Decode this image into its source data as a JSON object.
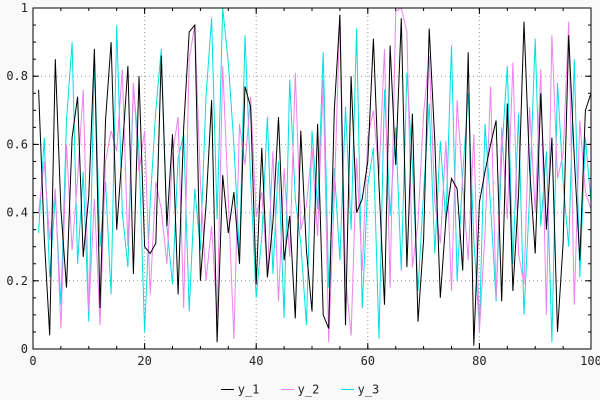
{
  "chart_data": {
    "type": "line",
    "title": "",
    "xlabel": "",
    "ylabel": "",
    "xlim": [
      0,
      100
    ],
    "ylim": [
      0,
      1
    ],
    "xticks": [
      0,
      20,
      40,
      60,
      80,
      100
    ],
    "yticks": [
      0,
      0.2,
      0.4,
      0.6,
      0.8,
      1
    ],
    "xtick_labels": [
      "0",
      "20",
      "40",
      "60",
      "80",
      "100"
    ],
    "ytick_labels": [
      "0",
      "0.2",
      "0.4",
      "0.6",
      "0.8",
      "1"
    ],
    "grid": true,
    "legend_position": "bottom-center",
    "x_start": 1,
    "series": [
      {
        "name": "y_1",
        "color": "#000000",
        "values": [
          0.76,
          0.33,
          0.04,
          0.85,
          0.41,
          0.18,
          0.62,
          0.74,
          0.27,
          0.45,
          0.88,
          0.12,
          0.67,
          0.9,
          0.35,
          0.58,
          0.83,
          0.22,
          0.8,
          0.3,
          0.28,
          0.31,
          0.86,
          0.36,
          0.63,
          0.16,
          0.65,
          0.93,
          0.95,
          0.2,
          0.42,
          0.73,
          0.02,
          0.51,
          0.34,
          0.46,
          0.25,
          0.77,
          0.71,
          0.19,
          0.59,
          0.21,
          0.37,
          0.68,
          0.26,
          0.39,
          0.09,
          0.64,
          0.29,
          0.11,
          0.66,
          0.1,
          0.06,
          0.7,
          0.98,
          0.07,
          0.8,
          0.4,
          0.44,
          0.55,
          0.91,
          0.48,
          0.13,
          0.89,
          0.54,
          0.97,
          0.24,
          0.69,
          0.08,
          0.32,
          0.94,
          0.61,
          0.15,
          0.38,
          0.5,
          0.47,
          0.23,
          0.87,
          0.01,
          0.43,
          0.52,
          0.6,
          0.67,
          0.14,
          0.72,
          0.17,
          0.45,
          0.96,
          0.53,
          0.28,
          0.75,
          0.35,
          0.62,
          0.05,
          0.31,
          0.92,
          0.56,
          0.26,
          0.7,
          0.75
        ]
      },
      {
        "name": "y_2",
        "color": "#ee82ee",
        "values": [
          0.4,
          0.55,
          0.32,
          0.47,
          0.06,
          0.6,
          0.29,
          0.5,
          0.76,
          0.11,
          0.44,
          0.07,
          0.55,
          0.64,
          0.58,
          0.82,
          0.3,
          0.78,
          0.52,
          0.64,
          0.16,
          0.49,
          0.41,
          0.25,
          0.57,
          0.68,
          0.12,
          0.85,
          0.95,
          0.49,
          0.2,
          0.36,
          0.09,
          0.83,
          0.44,
          0.03,
          0.66,
          0.54,
          0.74,
          0.39,
          0.46,
          0.22,
          0.58,
          0.14,
          0.53,
          0.27,
          0.81,
          0.35,
          0.42,
          0.59,
          0.33,
          0.79,
          0.02,
          0.45,
          0.98,
          0.21,
          0.04,
          0.56,
          0.23,
          0.62,
          0.7,
          0.51,
          0.88,
          0.18,
          0.99,
          1.0,
          0.93,
          0.24,
          0.37,
          0.69,
          0.86,
          0.43,
          0.31,
          0.61,
          0.17,
          0.73,
          0.48,
          0.26,
          0.63,
          0.05,
          0.34,
          0.77,
          0.15,
          0.65,
          0.38,
          0.84,
          0.28,
          0.19,
          0.71,
          0.4,
          0.82,
          0.1,
          0.92,
          0.5,
          0.57,
          0.96,
          0.13,
          0.67,
          0.46,
          0.41
        ]
      },
      {
        "name": "y_3",
        "color": "#00e0e0",
        "values": [
          0.34,
          0.62,
          0.21,
          0.45,
          0.13,
          0.67,
          0.9,
          0.25,
          0.52,
          0.08,
          0.86,
          0.3,
          0.49,
          0.16,
          0.95,
          0.4,
          0.24,
          0.77,
          0.58,
          0.05,
          0.43,
          0.7,
          0.88,
          0.36,
          0.19,
          0.56,
          0.63,
          0.11,
          0.47,
          0.29,
          0.74,
          0.97,
          0.38,
          1.0,
          0.84,
          0.6,
          0.27,
          0.92,
          0.5,
          0.15,
          0.33,
          0.68,
          0.22,
          0.55,
          0.09,
          0.79,
          0.44,
          0.31,
          0.07,
          0.64,
          0.41,
          0.87,
          0.18,
          0.53,
          0.26,
          0.71,
          0.35,
          0.94,
          0.12,
          0.48,
          0.59,
          0.03,
          0.76,
          0.39,
          0.65,
          0.23,
          0.81,
          0.54,
          0.17,
          0.46,
          0.72,
          0.28,
          0.61,
          0.37,
          0.89,
          0.2,
          0.51,
          0.75,
          0.32,
          0.06,
          0.66,
          0.42,
          0.14,
          0.57,
          0.83,
          0.25,
          0.69,
          0.1,
          0.45,
          0.91,
          0.36,
          0.58,
          0.02,
          0.78,
          0.49,
          0.3,
          0.85,
          0.21,
          0.62,
          0.43
        ]
      }
    ]
  },
  "colors": {
    "figure_background": "#f9f9f9",
    "plot_background": "#ffffff",
    "grid": "#9a9a9a",
    "frame": "#000000",
    "tick_text": "#222222"
  }
}
